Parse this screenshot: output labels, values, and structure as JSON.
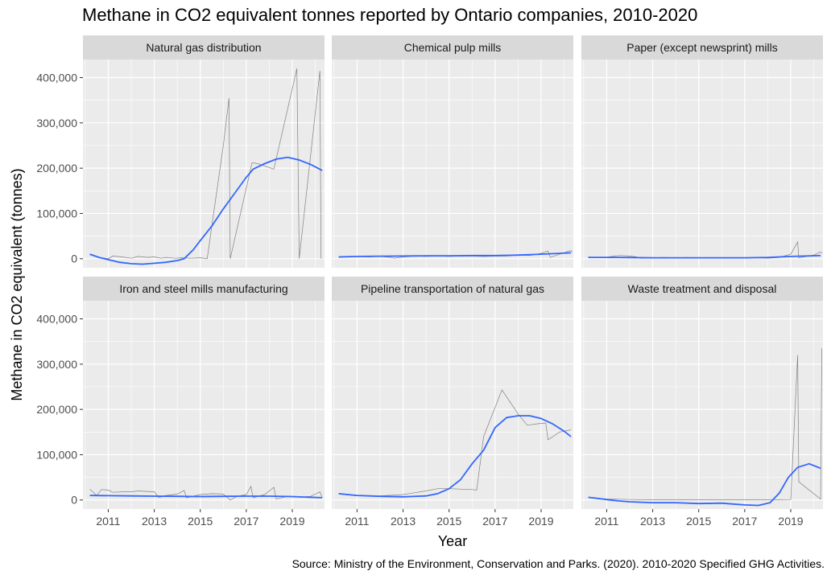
{
  "title": "Methane in CO2 equivalent tonnes reported by Ontario companies, 2010-2020",
  "source": "Source: Ministry of the Environment, Conservation and Parks. (2020). 2010-2020 Specified GHG Activities.",
  "colors": {
    "panel_bg": "#EBEBEB",
    "strip_bg": "#D9D9D9",
    "grid": "#FFFFFF",
    "raw_line": "#808080",
    "smooth_line": "#3366FF"
  },
  "chart_data": {
    "type": "line",
    "facet_layout": "2x3",
    "xlabel": "Year",
    "ylabel": "Methane in CO2 equivalent (tonnes)",
    "xlim": [
      2009.9,
      2020.4
    ],
    "ylim": [
      -20000,
      440000
    ],
    "x_ticks": [
      2011,
      2013,
      2015,
      2017,
      2019
    ],
    "x_tick_labels": [
      "2011",
      "2013",
      "2015",
      "2017",
      "2019"
    ],
    "y_ticks": [
      0,
      100000,
      200000,
      300000,
      400000
    ],
    "y_tick_labels": [
      "0",
      "100,000",
      "200,000",
      "300,000",
      "400,000"
    ],
    "grid": true,
    "legend": "none",
    "facets": [
      {
        "name": "Natural gas distribution",
        "raw": [
          [
            2010.2,
            9000
          ],
          [
            2010.6,
            3000
          ],
          [
            2011.0,
            0
          ],
          [
            2011.2,
            6000
          ],
          [
            2011.6,
            4000
          ],
          [
            2012.0,
            1000
          ],
          [
            2012.3,
            5000
          ],
          [
            2012.7,
            3000
          ],
          [
            2013.0,
            4000
          ],
          [
            2013.3,
            1000
          ],
          [
            2013.5,
            3000
          ],
          [
            2013.9,
            1000
          ],
          [
            2014.2,
            2000
          ],
          [
            2014.6,
            1000
          ],
          [
            2015.0,
            2000
          ],
          [
            2015.3,
            0
          ],
          [
            2016.0,
            250000
          ],
          [
            2016.25,
            355000
          ],
          [
            2016.3,
            0
          ],
          [
            2017.25,
            212000
          ],
          [
            2017.5,
            210000
          ],
          [
            2018.2,
            198000
          ],
          [
            2019.2,
            420000
          ],
          [
            2019.3,
            0
          ],
          [
            2020.2,
            415000
          ],
          [
            2020.25,
            0
          ]
        ],
        "smooth": [
          [
            2010.2,
            10000
          ],
          [
            2010.6,
            3000
          ],
          [
            2011.0,
            -2000
          ],
          [
            2011.5,
            -8000
          ],
          [
            2012.0,
            -11000
          ],
          [
            2012.5,
            -12000
          ],
          [
            2013.0,
            -10000
          ],
          [
            2013.5,
            -8000
          ],
          [
            2014.0,
            -4000
          ],
          [
            2014.3,
            0
          ],
          [
            2014.7,
            20000
          ],
          [
            2015.0,
            40000
          ],
          [
            2015.5,
            72000
          ],
          [
            2016.0,
            110000
          ],
          [
            2016.5,
            145000
          ],
          [
            2017.0,
            180000
          ],
          [
            2017.3,
            198000
          ],
          [
            2017.8,
            210000
          ],
          [
            2018.3,
            220000
          ],
          [
            2018.8,
            224000
          ],
          [
            2019.3,
            218000
          ],
          [
            2019.8,
            208000
          ],
          [
            2020.3,
            195000
          ]
        ]
      },
      {
        "name": "Chemical pulp mills",
        "raw": [
          [
            2010.2,
            3000
          ],
          [
            2010.5,
            4000
          ],
          [
            2011.0,
            5000
          ],
          [
            2011.5,
            4000
          ],
          [
            2012.0,
            5000
          ],
          [
            2012.5,
            3000
          ],
          [
            2012.6,
            1000
          ],
          [
            2013.0,
            4000
          ],
          [
            2013.5,
            6000
          ],
          [
            2014.0,
            5000
          ],
          [
            2014.5,
            6000
          ],
          [
            2015.0,
            5000
          ],
          [
            2015.5,
            6000
          ],
          [
            2016.0,
            6000
          ],
          [
            2016.5,
            5000
          ],
          [
            2017.0,
            6000
          ],
          [
            2017.5,
            6000
          ],
          [
            2018.0,
            8000
          ],
          [
            2018.5,
            7000
          ],
          [
            2019.0,
            12000
          ],
          [
            2019.3,
            17000
          ],
          [
            2019.4,
            3000
          ],
          [
            2019.8,
            10000
          ],
          [
            2020.3,
            18000
          ],
          [
            2020.35,
            14000
          ]
        ],
        "smooth": [
          [
            2010.2,
            4000
          ],
          [
            2011.0,
            5000
          ],
          [
            2012.0,
            5500
          ],
          [
            2013.0,
            6000
          ],
          [
            2014.0,
            6500
          ],
          [
            2015.0,
            6500
          ],
          [
            2016.0,
            7000
          ],
          [
            2017.0,
            7000
          ],
          [
            2018.0,
            8000
          ],
          [
            2019.0,
            10000
          ],
          [
            2020.3,
            13000
          ]
        ]
      },
      {
        "name": "Paper (except newsprint) mills",
        "raw": [
          [
            2010.2,
            4000
          ],
          [
            2010.6,
            2000
          ],
          [
            2011.0,
            3000
          ],
          [
            2011.3,
            6000
          ],
          [
            2011.6,
            7000
          ],
          [
            2012.0,
            6000
          ],
          [
            2012.3,
            4000
          ],
          [
            2012.5,
            1000
          ],
          [
            2013.0,
            2000
          ],
          [
            2013.5,
            3000
          ],
          [
            2014.0,
            1000
          ],
          [
            2014.5,
            3000
          ],
          [
            2015.0,
            1000
          ],
          [
            2015.5,
            2000
          ],
          [
            2016.0,
            1000
          ],
          [
            2016.5,
            2000
          ],
          [
            2017.0,
            1000
          ],
          [
            2017.5,
            2000
          ],
          [
            2018.0,
            1000
          ],
          [
            2018.5,
            3000
          ],
          [
            2019.0,
            10000
          ],
          [
            2019.3,
            37000
          ],
          [
            2019.35,
            2000
          ],
          [
            2020.0,
            8000
          ],
          [
            2020.3,
            15000
          ],
          [
            2020.35,
            12000
          ]
        ],
        "smooth": [
          [
            2010.2,
            3000
          ],
          [
            2011.0,
            3000
          ],
          [
            2012.0,
            2500
          ],
          [
            2013.0,
            2000
          ],
          [
            2014.0,
            2000
          ],
          [
            2015.0,
            2000
          ],
          [
            2016.0,
            2000
          ],
          [
            2017.0,
            2000
          ],
          [
            2018.0,
            3000
          ],
          [
            2019.0,
            5000
          ],
          [
            2020.3,
            7000
          ]
        ]
      },
      {
        "name": "Iron and steel mills manufacturing",
        "raw": [
          [
            2010.2,
            24000
          ],
          [
            2010.5,
            10000
          ],
          [
            2010.7,
            23000
          ],
          [
            2011.0,
            22000
          ],
          [
            2011.2,
            17000
          ],
          [
            2011.6,
            18000
          ],
          [
            2012.0,
            18000
          ],
          [
            2012.3,
            20000
          ],
          [
            2012.6,
            19000
          ],
          [
            2013.0,
            18000
          ],
          [
            2013.2,
            5000
          ],
          [
            2013.5,
            10000
          ],
          [
            2014.0,
            13000
          ],
          [
            2014.3,
            21000
          ],
          [
            2014.4,
            5000
          ],
          [
            2015.0,
            12000
          ],
          [
            2015.5,
            14000
          ],
          [
            2016.0,
            13000
          ],
          [
            2016.3,
            0
          ],
          [
            2016.6,
            8000
          ],
          [
            2017.0,
            12000
          ],
          [
            2017.2,
            30000
          ],
          [
            2017.3,
            5000
          ],
          [
            2017.8,
            12000
          ],
          [
            2018.2,
            28000
          ],
          [
            2018.3,
            2000
          ],
          [
            2018.8,
            8000
          ],
          [
            2019.3,
            6000
          ],
          [
            2019.8,
            8000
          ],
          [
            2020.2,
            18000
          ],
          [
            2020.3,
            6000
          ]
        ],
        "smooth": [
          [
            2010.2,
            10000
          ],
          [
            2011.0,
            9500
          ],
          [
            2012.0,
            9000
          ],
          [
            2013.0,
            8500
          ],
          [
            2014.0,
            8000
          ],
          [
            2015.0,
            7500
          ],
          [
            2016.0,
            8000
          ],
          [
            2017.0,
            8500
          ],
          [
            2018.0,
            8500
          ],
          [
            2019.0,
            7500
          ],
          [
            2020.3,
            5000
          ]
        ]
      },
      {
        "name": "Pipeline transportation of natural gas",
        "raw": [
          [
            2010.2,
            13000
          ],
          [
            2011.0,
            9000
          ],
          [
            2012.0,
            9000
          ],
          [
            2013.0,
            12000
          ],
          [
            2014.0,
            20000
          ],
          [
            2014.5,
            25000
          ],
          [
            2015.0,
            25000
          ],
          [
            2015.5,
            24000
          ],
          [
            2016.0,
            23000
          ],
          [
            2016.2,
            22000
          ],
          [
            2016.5,
            140000
          ],
          [
            2017.3,
            243000
          ],
          [
            2018.0,
            190000
          ],
          [
            2018.4,
            165000
          ],
          [
            2018.8,
            168000
          ],
          [
            2019.2,
            170000
          ],
          [
            2019.3,
            133000
          ],
          [
            2019.8,
            150000
          ],
          [
            2020.3,
            155000
          ]
        ],
        "smooth": [
          [
            2010.2,
            14000
          ],
          [
            2011.0,
            10000
          ],
          [
            2012.0,
            8000
          ],
          [
            2013.0,
            7000
          ],
          [
            2014.0,
            9000
          ],
          [
            2014.5,
            14000
          ],
          [
            2015.0,
            25000
          ],
          [
            2015.5,
            45000
          ],
          [
            2016.0,
            80000
          ],
          [
            2016.5,
            110000
          ],
          [
            2017.0,
            160000
          ],
          [
            2017.5,
            182000
          ],
          [
            2018.0,
            186000
          ],
          [
            2018.5,
            186000
          ],
          [
            2019.0,
            180000
          ],
          [
            2019.5,
            168000
          ],
          [
            2020.0,
            152000
          ],
          [
            2020.3,
            140000
          ]
        ]
      },
      {
        "name": "Waste treatment and disposal",
        "raw": [
          [
            2010.2,
            5000
          ],
          [
            2011.0,
            2000
          ],
          [
            2012.0,
            1000
          ],
          [
            2013.0,
            500
          ],
          [
            2014.0,
            500
          ],
          [
            2015.0,
            500
          ],
          [
            2016.0,
            500
          ],
          [
            2017.0,
            500
          ],
          [
            2018.0,
            500
          ],
          [
            2019.0,
            1000
          ],
          [
            2019.3,
            320000
          ],
          [
            2019.35,
            40000
          ],
          [
            2020.3,
            2000
          ],
          [
            2020.35,
            335000
          ]
        ],
        "smooth": [
          [
            2010.2,
            6000
          ],
          [
            2011.0,
            1000
          ],
          [
            2011.5,
            -2000
          ],
          [
            2012.0,
            -4000
          ],
          [
            2013.0,
            -6000
          ],
          [
            2014.0,
            -6000
          ],
          [
            2015.0,
            -8000
          ],
          [
            2016.0,
            -7000
          ],
          [
            2016.5,
            -9000
          ],
          [
            2017.0,
            -11000
          ],
          [
            2017.6,
            -12000
          ],
          [
            2018.1,
            -6000
          ],
          [
            2018.5,
            15000
          ],
          [
            2018.9,
            50000
          ],
          [
            2019.3,
            72000
          ],
          [
            2019.8,
            80000
          ],
          [
            2020.3,
            70000
          ]
        ]
      }
    ]
  }
}
